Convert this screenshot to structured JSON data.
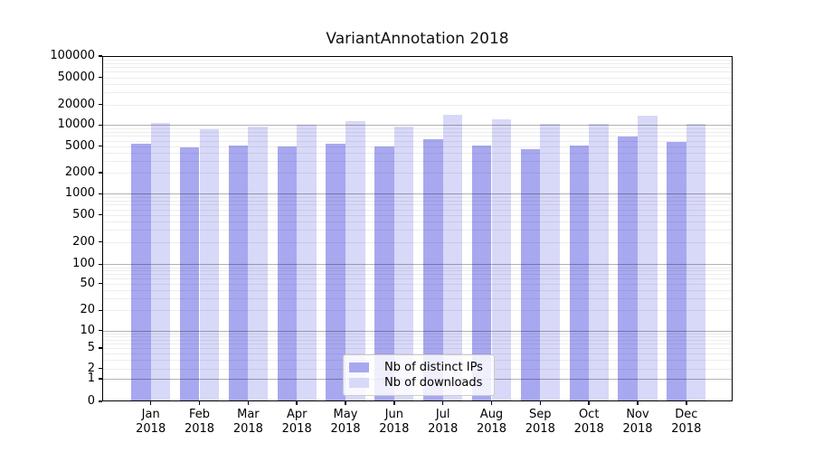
{
  "chart_data": {
    "type": "bar",
    "title": "VariantAnnotation 2018",
    "categories": [
      "Jan 2018",
      "Feb 2018",
      "Mar 2018",
      "Apr 2018",
      "May 2018",
      "Jun 2018",
      "Jul 2018",
      "Aug 2018",
      "Sep 2018",
      "Oct 2018",
      "Nov 2018",
      "Dec 2018"
    ],
    "series": [
      {
        "name": "Nb of distinct IPs",
        "color": "#a8a8f0",
        "values": [
          5400,
          4800,
          5100,
          4900,
          5400,
          4900,
          6200,
          5100,
          4500,
          5100,
          6900,
          5700
        ]
      },
      {
        "name": "Nb of downloads",
        "color": "#d8d8f8",
        "values": [
          10600,
          8600,
          9400,
          10200,
          11500,
          9600,
          14200,
          12200,
          10500,
          10500,
          13800,
          10300
        ]
      }
    ],
    "xlabel": "",
    "ylabel": "",
    "yscale": "symlog",
    "ylim": [
      0,
      100000
    ],
    "yticks": [
      0,
      1,
      2,
      5,
      10,
      20,
      50,
      100,
      200,
      500,
      1000,
      2000,
      5000,
      10000,
      20000,
      50000,
      100000
    ],
    "grid": "horizontal major decades + log minor lines",
    "legend": {
      "position": "lower center",
      "entries": [
        "Nb of distinct IPs",
        "Nb of downloads"
      ]
    }
  }
}
